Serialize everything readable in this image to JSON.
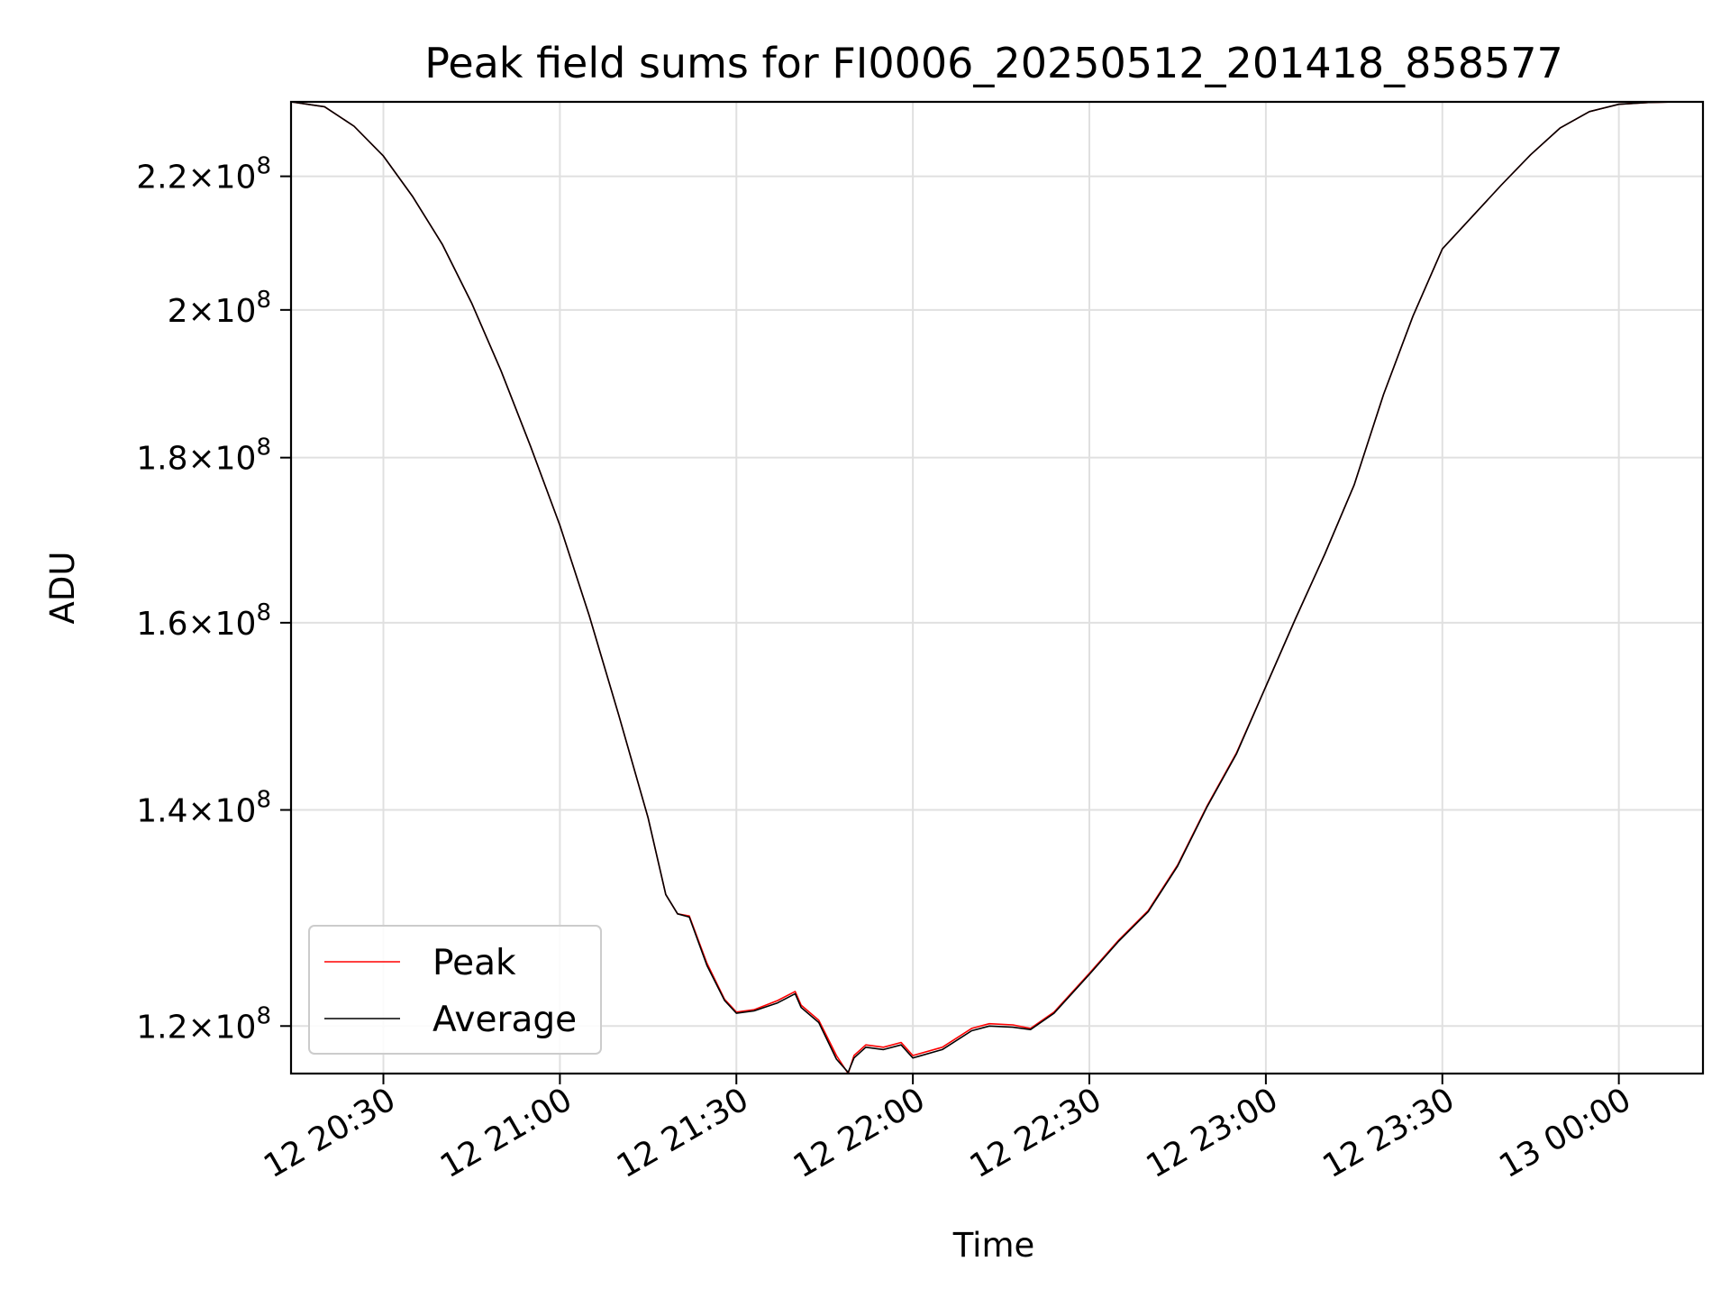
{
  "chart_data": {
    "type": "line",
    "title": "Peak field sums for FI0006_20250512_201418_858577",
    "xlabel": "Time",
    "ylabel": "ADU",
    "yscale": "log",
    "xlim": [
      "2025-05-12 20:14:18",
      "2025-05-13 00:14:18"
    ],
    "ylim": [
      116000000,
      232000000
    ],
    "xticks": [
      "2025-05-12 20:30",
      "2025-05-12 21:00",
      "2025-05-12 21:30",
      "2025-05-12 22:00",
      "2025-05-12 22:30",
      "2025-05-12 23:00",
      "2025-05-12 23:30",
      "2025-05-13 00:00"
    ],
    "xtick_labels": [
      "12 20:30",
      "12 21:00",
      "12 21:30",
      "12 22:00",
      "12 22:30",
      "12 23:00",
      "12 23:30",
      "13 00:00"
    ],
    "yticks": [
      120000000,
      140000000,
      160000000,
      180000000,
      200000000,
      220000000
    ],
    "ytick_labels": [
      {
        "mantissa": "1.2",
        "exp": "8"
      },
      {
        "mantissa": "1.4",
        "exp": "8"
      },
      {
        "mantissa": "1.6",
        "exp": "8"
      },
      {
        "mantissa": "1.8",
        "exp": "8"
      },
      {
        "mantissa": "2",
        "exp": "8"
      },
      {
        "mantissa": "2.2",
        "exp": "8"
      }
    ],
    "grid": true,
    "legend": {
      "position": "lower-left"
    },
    "series": [
      {
        "name": "Peak",
        "color": "#ff0000",
        "x": [
          "2025-05-12 20:14:18",
          "2025-05-12 20:20",
          "2025-05-12 20:25",
          "2025-05-12 20:30",
          "2025-05-12 20:35",
          "2025-05-12 20:40",
          "2025-05-12 20:45",
          "2025-05-12 20:50",
          "2025-05-12 20:55",
          "2025-05-12 21:00",
          "2025-05-12 21:05",
          "2025-05-12 21:10",
          "2025-05-12 21:15",
          "2025-05-12 21:18",
          "2025-05-12 21:20",
          "2025-05-12 21:22",
          "2025-05-12 21:25",
          "2025-05-12 21:28",
          "2025-05-12 21:30",
          "2025-05-12 21:33",
          "2025-05-12 21:37",
          "2025-05-12 21:40",
          "2025-05-12 21:41",
          "2025-05-12 21:44",
          "2025-05-12 21:47",
          "2025-05-12 21:49",
          "2025-05-12 21:50",
          "2025-05-12 21:52",
          "2025-05-12 21:55",
          "2025-05-12 21:58",
          "2025-05-12 22:00",
          "2025-05-12 22:05",
          "2025-05-12 22:10",
          "2025-05-12 22:13",
          "2025-05-12 22:17",
          "2025-05-12 22:20",
          "2025-05-12 22:24",
          "2025-05-12 22:30",
          "2025-05-12 22:35",
          "2025-05-12 22:40",
          "2025-05-12 22:45",
          "2025-05-12 22:50",
          "2025-05-12 22:55",
          "2025-05-12 23:00",
          "2025-05-12 23:05",
          "2025-05-12 23:10",
          "2025-05-12 23:15",
          "2025-05-12 23:20",
          "2025-05-12 23:25",
          "2025-05-12 23:30",
          "2025-05-12 23:35",
          "2025-05-12 23:40",
          "2025-05-12 23:45",
          "2025-05-12 23:50",
          "2025-05-12 23:55",
          "2025-05-13 00:00",
          "2025-05-13 00:05",
          "2025-05-13 00:10",
          "2025-05-13 00:14:18"
        ],
        "values": [
          232000000,
          231200000,
          228000000,
          223200000,
          216800000,
          209600000,
          201000000,
          191500000,
          181500000,
          171500000,
          160800000,
          149800000,
          139200000,
          131800000,
          130000000,
          129800000,
          125500000,
          122300000,
          121200000,
          121400000,
          122200000,
          123000000,
          121800000,
          120500000,
          117500000,
          116000000,
          117500000,
          118400000,
          118200000,
          118600000,
          117500000,
          118200000,
          119800000,
          120200000,
          120100000,
          119800000,
          121200000,
          124600000,
          127600000,
          130300000,
          134600000,
          140400000,
          145800000,
          152900000,
          160400000,
          168000000,
          176500000,
          188300000,
          199100000,
          208900000,
          213700000,
          218600000,
          223400000,
          227700000,
          230400000,
          231600000,
          231900000,
          232000000,
          232000000
        ]
      },
      {
        "name": "Average",
        "color": "#000000",
        "x": [
          "2025-05-12 20:14:18",
          "2025-05-12 20:20",
          "2025-05-12 20:25",
          "2025-05-12 20:30",
          "2025-05-12 20:35",
          "2025-05-12 20:40",
          "2025-05-12 20:45",
          "2025-05-12 20:50",
          "2025-05-12 20:55",
          "2025-05-12 21:00",
          "2025-05-12 21:05",
          "2025-05-12 21:10",
          "2025-05-12 21:15",
          "2025-05-12 21:18",
          "2025-05-12 21:20",
          "2025-05-12 21:22",
          "2025-05-12 21:25",
          "2025-05-12 21:28",
          "2025-05-12 21:30",
          "2025-05-12 21:33",
          "2025-05-12 21:37",
          "2025-05-12 21:40",
          "2025-05-12 21:41",
          "2025-05-12 21:44",
          "2025-05-12 21:47",
          "2025-05-12 21:49",
          "2025-05-12 21:50",
          "2025-05-12 21:52",
          "2025-05-12 21:55",
          "2025-05-12 21:58",
          "2025-05-12 22:00",
          "2025-05-12 22:05",
          "2025-05-12 22:10",
          "2025-05-12 22:13",
          "2025-05-12 22:17",
          "2025-05-12 22:20",
          "2025-05-12 22:24",
          "2025-05-12 22:30",
          "2025-05-12 22:35",
          "2025-05-12 22:40",
          "2025-05-12 22:45",
          "2025-05-12 22:50",
          "2025-05-12 22:55",
          "2025-05-12 23:00",
          "2025-05-12 23:05",
          "2025-05-12 23:10",
          "2025-05-12 23:15",
          "2025-05-12 23:20",
          "2025-05-12 23:25",
          "2025-05-12 23:30",
          "2025-05-12 23:35",
          "2025-05-12 23:40",
          "2025-05-12 23:45",
          "2025-05-12 23:50",
          "2025-05-12 23:55",
          "2025-05-13 00:00",
          "2025-05-13 00:05",
          "2025-05-13 00:10",
          "2025-05-13 00:14:18"
        ],
        "values": [
          232000000,
          231200000,
          228000000,
          223200000,
          216800000,
          209600000,
          201000000,
          191500000,
          181500000,
          171500000,
          160800000,
          149800000,
          139200000,
          131800000,
          130000000,
          129700000,
          125300000,
          122200000,
          121100000,
          121300000,
          122000000,
          122800000,
          121600000,
          120300000,
          117200000,
          116100000,
          117300000,
          118200000,
          118000000,
          118400000,
          117300000,
          118000000,
          119600000,
          120000000,
          119900000,
          119700000,
          121100000,
          124500000,
          127500000,
          130200000,
          134500000,
          140300000,
          145700000,
          152900000,
          160400000,
          168000000,
          176500000,
          188300000,
          199100000,
          208900000,
          213700000,
          218600000,
          223400000,
          227700000,
          230400000,
          231600000,
          231900000,
          232000000,
          232000000
        ]
      }
    ]
  }
}
